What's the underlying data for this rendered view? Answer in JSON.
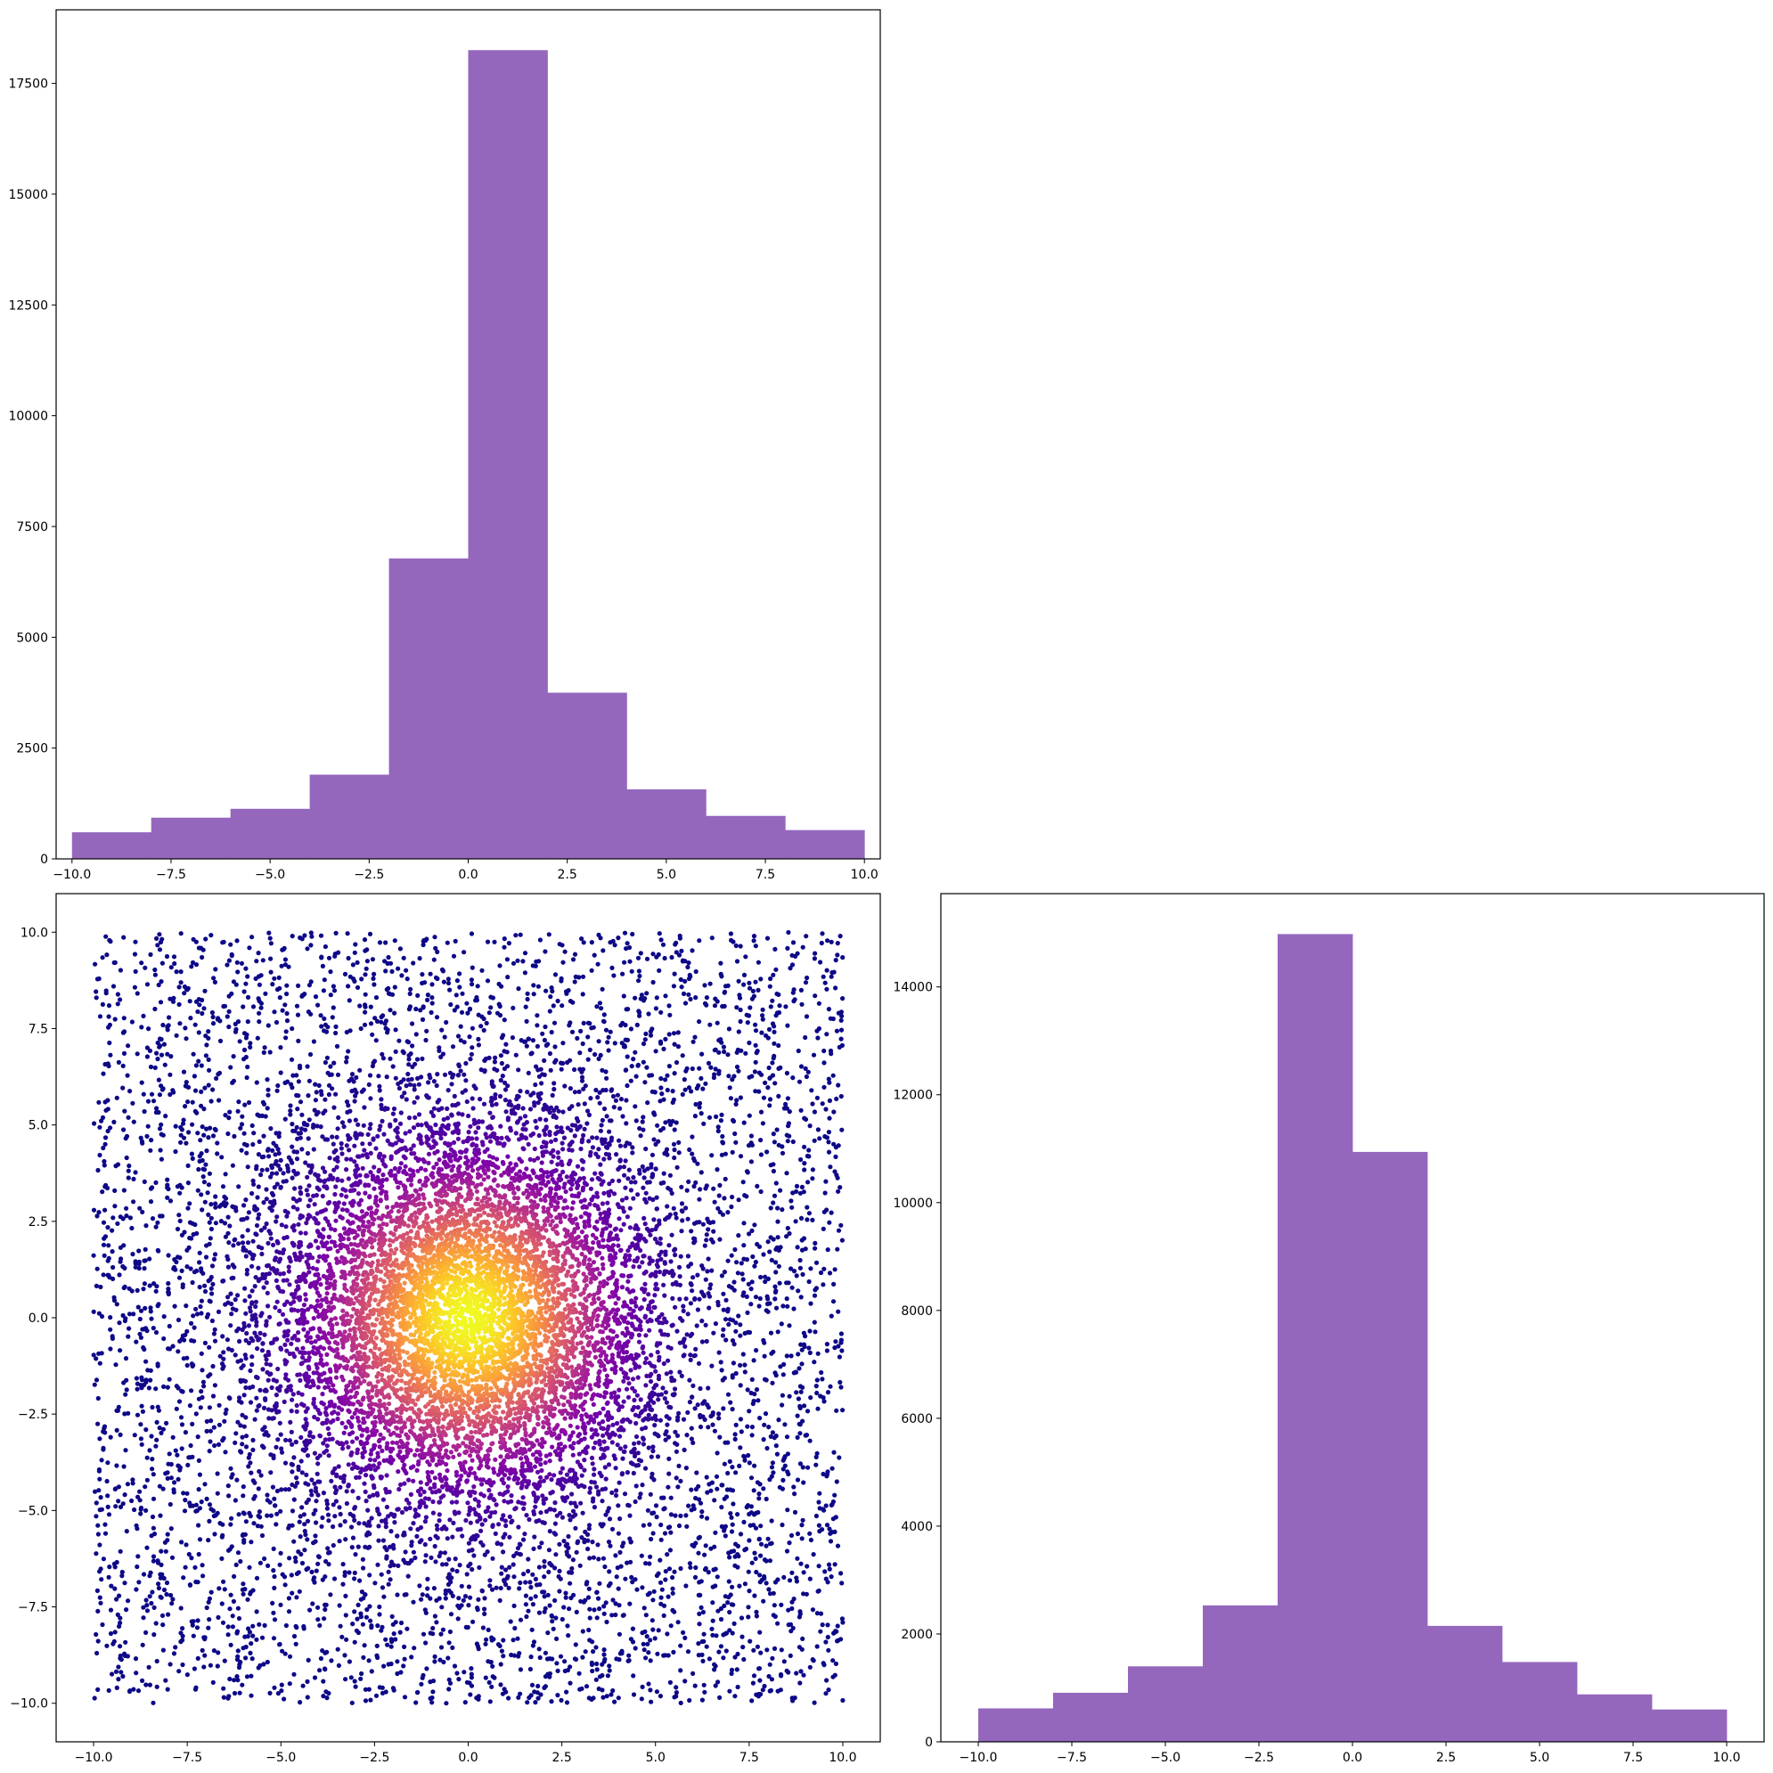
{
  "chart_data": [
    {
      "type": "bar",
      "panel": "top-left",
      "title": "",
      "xlabel": "",
      "ylabel": "",
      "bin_edges": [
        -10,
        -8,
        -6,
        -4,
        -2,
        0,
        2,
        4,
        6,
        8,
        10
      ],
      "values": [
        600,
        930,
        1130,
        1900,
        6780,
        18250,
        3750,
        1570,
        970,
        650
      ],
      "color": "#9467bd",
      "xlim": [
        -10.4,
        10.4
      ],
      "ylim": [
        0,
        19160
      ],
      "xticks": [
        "−10.0",
        "−7.5",
        "−5.0",
        "−2.5",
        "0.0",
        "2.5",
        "5.0",
        "7.5",
        "10.0"
      ],
      "xtick_values": [
        -10,
        -7.5,
        -5,
        -2.5,
        0,
        2.5,
        5,
        7.5,
        10
      ],
      "yticks": [
        "0",
        "2500",
        "5000",
        "7500",
        "10000",
        "12500",
        "15000",
        "17500"
      ],
      "ytick_values": [
        0,
        2500,
        5000,
        7500,
        10000,
        12500,
        15000,
        17500
      ]
    },
    {
      "type": "scatter",
      "panel": "bottom-left",
      "title": "",
      "xlabel": "",
      "ylabel": "",
      "colormap": "plasma",
      "color_by": "density (bright yellow at center, dark purple at edges)",
      "x_range": [
        -10,
        10
      ],
      "y_range": [
        -10,
        10
      ],
      "center": [
        0,
        0
      ],
      "approx_points_shown": 12000,
      "xlim": [
        -11,
        11
      ],
      "ylim": [
        -11,
        11
      ],
      "xticks": [
        "−10.0",
        "−7.5",
        "−5.0",
        "−2.5",
        "0.0",
        "2.5",
        "5.0",
        "7.5",
        "10.0"
      ],
      "xtick_values": [
        -10,
        -7.5,
        -5,
        -2.5,
        0,
        2.5,
        5,
        7.5,
        10
      ],
      "yticks": [
        "10.0",
        "7.5",
        "5.0",
        "2.5",
        "0.0",
        "−2.5",
        "−5.0",
        "−7.5",
        "−10.0"
      ],
      "ytick_values": [
        10,
        7.5,
        5,
        2.5,
        0,
        -2.5,
        -5,
        -7.5,
        -10
      ]
    },
    {
      "type": "bar",
      "panel": "bottom-right",
      "title": "",
      "xlabel": "",
      "ylabel": "",
      "bin_edges": [
        -10,
        -8,
        -6,
        -4,
        -2,
        0,
        2,
        4,
        6,
        8,
        10
      ],
      "values": [
        620,
        910,
        1400,
        2530,
        14980,
        10940,
        2150,
        1480,
        880,
        600
      ],
      "color": "#9467bd",
      "xlim": [
        -11,
        11
      ],
      "ylim": [
        0,
        15730
      ],
      "xticks": [
        "−10.0",
        "−7.5",
        "−5.0",
        "−2.5",
        "0.0",
        "2.5",
        "5.0",
        "7.5",
        "10.0"
      ],
      "xtick_values": [
        -10,
        -7.5,
        -5,
        -2.5,
        0,
        2.5,
        5,
        7.5,
        10
      ],
      "yticks": [
        "0",
        "2000",
        "4000",
        "6000",
        "8000",
        "10000",
        "12000",
        "14000"
      ],
      "ytick_values": [
        0,
        2000,
        4000,
        6000,
        8000,
        10000,
        12000,
        14000
      ]
    }
  ]
}
